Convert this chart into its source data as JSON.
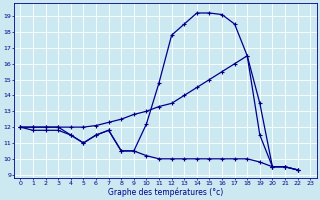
{
  "bg_color": "#cce8f0",
  "grid_color": "#ffffff",
  "line_color": "#00008b",
  "marker": "+",
  "markersize": 3,
  "linewidth": 0.9,
  "markeredgewidth": 0.8,
  "xlim": [
    -0.5,
    23.5
  ],
  "ylim": [
    8.8,
    19.8
  ],
  "yticks": [
    9,
    10,
    11,
    12,
    13,
    14,
    15,
    16,
    17,
    18,
    19
  ],
  "xticks": [
    0,
    1,
    2,
    3,
    4,
    5,
    6,
    7,
    8,
    9,
    10,
    11,
    12,
    13,
    14,
    15,
    16,
    17,
    18,
    19,
    20,
    21,
    22,
    23
  ],
  "xlabel": "Graphe des températures (°c)",
  "tick_labelsize": 4.5,
  "xlabel_fontsize": 5.5,
  "series": [
    {
      "x": [
        0,
        1,
        2,
        3,
        4,
        5,
        6,
        7,
        8,
        9,
        10,
        11,
        12,
        13,
        14,
        15,
        16,
        17,
        18,
        19,
        20,
        21,
        22,
        23
      ],
      "y": [
        12.0,
        12.0,
        12.0,
        12.0,
        11.5,
        11.0,
        11.5,
        11.8,
        10.5,
        10.5,
        12.2,
        14.8,
        17.8,
        18.5,
        19.2,
        19.2,
        19.1,
        18.5,
        16.5,
        11.5,
        9.5,
        9.5,
        9.3,
        null
      ]
    },
    {
      "x": [
        0,
        1,
        2,
        3,
        4,
        5,
        6,
        7,
        8,
        9,
        10,
        11,
        12,
        13,
        14,
        15,
        16,
        17,
        18,
        19,
        20,
        21,
        22,
        23
      ],
      "y": [
        12.0,
        12.0,
        12.0,
        12.0,
        12.0,
        12.0,
        12.1,
        12.3,
        12.5,
        12.8,
        13.0,
        13.3,
        13.5,
        14.0,
        14.5,
        15.0,
        15.5,
        16.0,
        16.5,
        13.5,
        9.5,
        9.5,
        9.3,
        null
      ]
    },
    {
      "x": [
        0,
        1,
        2,
        3,
        4,
        5,
        6,
        7,
        8,
        9,
        10,
        11,
        12,
        13,
        14,
        15,
        16,
        17,
        18,
        19,
        20,
        21,
        22,
        23
      ],
      "y": [
        12.0,
        11.8,
        11.8,
        11.8,
        11.5,
        11.0,
        11.5,
        11.8,
        10.5,
        10.5,
        10.2,
        10.0,
        10.0,
        10.0,
        10.0,
        10.0,
        10.0,
        10.0,
        10.0,
        9.8,
        9.5,
        9.5,
        9.3,
        null
      ]
    }
  ]
}
